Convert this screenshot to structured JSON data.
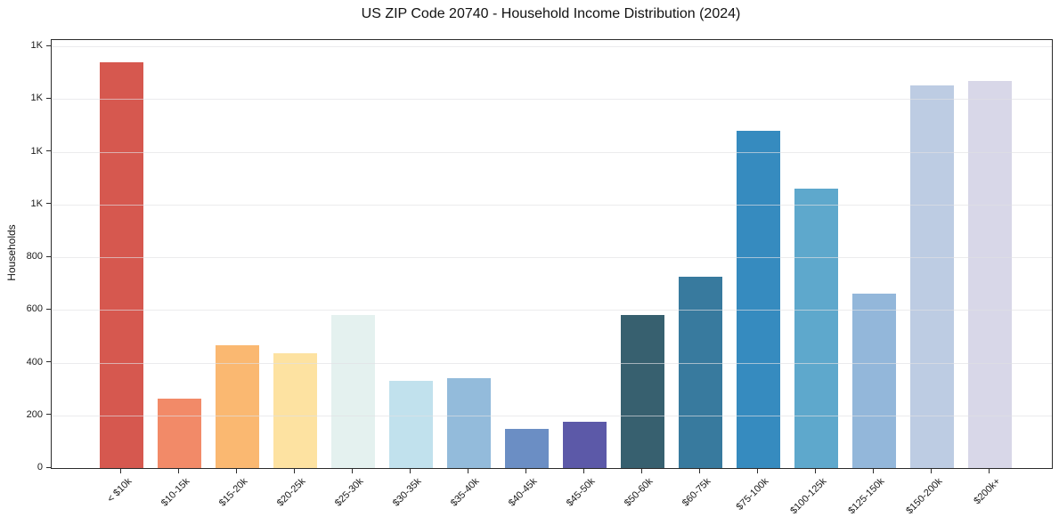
{
  "chart_data": {
    "type": "bar",
    "title": "US ZIP Code 20740 - Household Income Distribution (2024)",
    "xlabel": "",
    "ylabel": "Households",
    "categories": [
      "< $10k",
      "$10-15k",
      "$15-20k",
      "$20-25k",
      "$25-30k",
      "$30-35k",
      "$35-40k",
      "$40-45k",
      "$45-50k",
      "$50-60k",
      "$60-75k",
      "$75-100k",
      "$100-125k",
      "$125-150k",
      "$150-200k",
      "$200k+"
    ],
    "values": [
      1540,
      265,
      465,
      435,
      580,
      330,
      340,
      150,
      175,
      580,
      725,
      1280,
      1060,
      660,
      1450,
      1470
    ],
    "bar_colors": [
      "#d6584f",
      "#f28a68",
      "#fab871",
      "#fde2a1",
      "#e4f1ef",
      "#c1e1ed",
      "#93bbdb",
      "#6b8ec4",
      "#5c59a8",
      "#37606f",
      "#387a9e",
      "#368bbf",
      "#5ea8cc",
      "#93b7da",
      "#bdcce3",
      "#d8d7e8"
    ],
    "y_ticks": [
      {
        "value": 0,
        "label": "0"
      },
      {
        "value": 200,
        "label": "200"
      },
      {
        "value": 400,
        "label": "400"
      },
      {
        "value": 600,
        "label": "600"
      },
      {
        "value": 800,
        "label": "800"
      },
      {
        "value": 1000,
        "label": "1K"
      },
      {
        "value": 1200,
        "label": "1K"
      },
      {
        "value": 1400,
        "label": "1K"
      },
      {
        "value": 1600,
        "label": "1K"
      }
    ],
    "ylim": [
      0,
      1620
    ],
    "grid": "horizontal",
    "legend": "none"
  }
}
